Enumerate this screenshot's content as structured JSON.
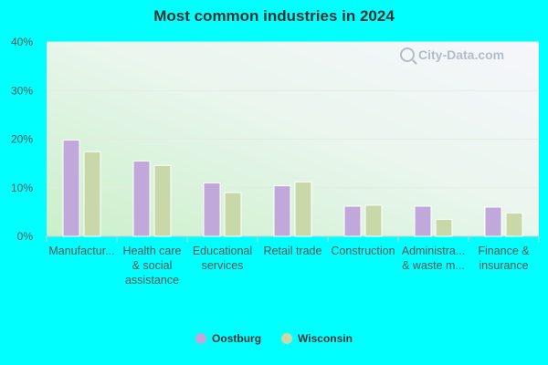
{
  "chart_data": {
    "type": "bar",
    "title": "Most common industries in 2024",
    "categories": [
      [
        "Manufactur..."
      ],
      [
        "Health care",
        "& social",
        "assistance"
      ],
      [
        "Educational",
        "services"
      ],
      [
        "Retail trade"
      ],
      [
        "Construction"
      ],
      [
        "Administra...",
        "& waste m..."
      ],
      [
        "Finance &",
        "insurance"
      ]
    ],
    "series": [
      {
        "name": "Oostburg",
        "color": "#c0a8da",
        "values": [
          19.8,
          15.5,
          11.0,
          10.4,
          6.2,
          6.2,
          6.0
        ]
      },
      {
        "name": "Wisconsin",
        "color": "#c8d8a8",
        "values": [
          17.4,
          14.6,
          9.0,
          11.2,
          6.4,
          3.5,
          4.8
        ]
      }
    ],
    "ylim": [
      0,
      40
    ],
    "yticks": [
      "0%",
      "10%",
      "20%",
      "30%",
      "40%"
    ],
    "grid": true,
    "legend_position": "bottom"
  },
  "watermark": "City-Data.com"
}
